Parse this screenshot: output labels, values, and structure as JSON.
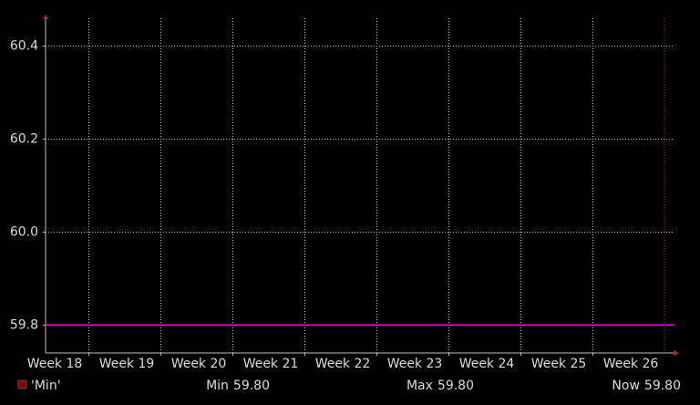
{
  "chart_data": {
    "type": "line",
    "categories": [
      "Week 18",
      "Week 19",
      "Week 20",
      "Week 21",
      "Week 22",
      "Week 23",
      "Week 24",
      "Week 25",
      "Week 26"
    ],
    "series": [
      {
        "name": "'Min'",
        "color": "#ff00ff",
        "legend_color": "#8b0000",
        "values": [
          59.8,
          59.8,
          59.8,
          59.8,
          59.8,
          59.8,
          59.8,
          59.8,
          59.8
        ]
      }
    ],
    "ylim": [
      59.74,
      60.46
    ],
    "yticks": [
      59.8,
      {
        "value": 60,
        "label": "60.0"
      },
      60.2,
      60.4
    ],
    "grid": true,
    "stats": [
      {
        "name": "Min",
        "value": 59.8,
        "label": "59.80"
      },
      {
        "name": "Max",
        "value": 59.8,
        "label": "59.80"
      },
      {
        "name": "Now",
        "value": 59.8,
        "label": "59.80"
      }
    ]
  }
}
